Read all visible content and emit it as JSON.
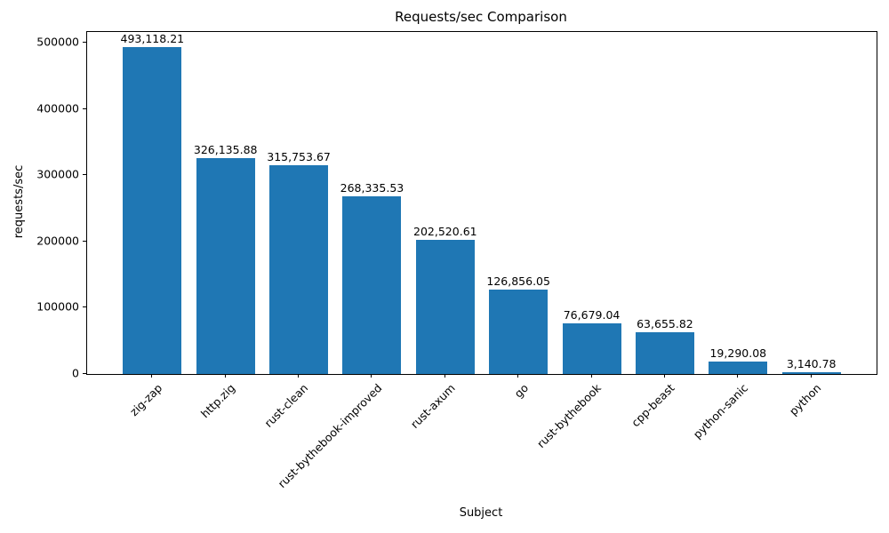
{
  "chart_data": {
    "type": "bar",
    "title": "Requests/sec Comparison",
    "xlabel": "Subject",
    "ylabel": "requests/sec",
    "categories": [
      "zig-zap",
      "http.zig",
      "rust-clean",
      "rust-bythebook-improved",
      "rust-axum",
      "go",
      "rust-bythebook",
      "cpp-beast",
      "python-sanic",
      "python"
    ],
    "values": [
      493118.21,
      326135.88,
      315753.67,
      268335.53,
      202520.61,
      126856.05,
      76679.04,
      63655.82,
      19290.08,
      3140.78
    ],
    "value_labels": [
      "493,118.21",
      "326,135.88",
      "315,753.67",
      "268,335.53",
      "202,520.61",
      "126,856.05",
      "76,679.04",
      "63,655.82",
      "19,290.08",
      "3,140.78"
    ],
    "yticks": [
      0,
      100000,
      200000,
      300000,
      400000,
      500000
    ],
    "ytick_labels": [
      "0",
      "100000",
      "200000",
      "300000",
      "400000",
      "500000"
    ],
    "ylim": [
      0,
      516300
    ],
    "bar_color": "#1f77b4",
    "grid": false,
    "legend": null,
    "xtick_rotation_deg": 45
  }
}
